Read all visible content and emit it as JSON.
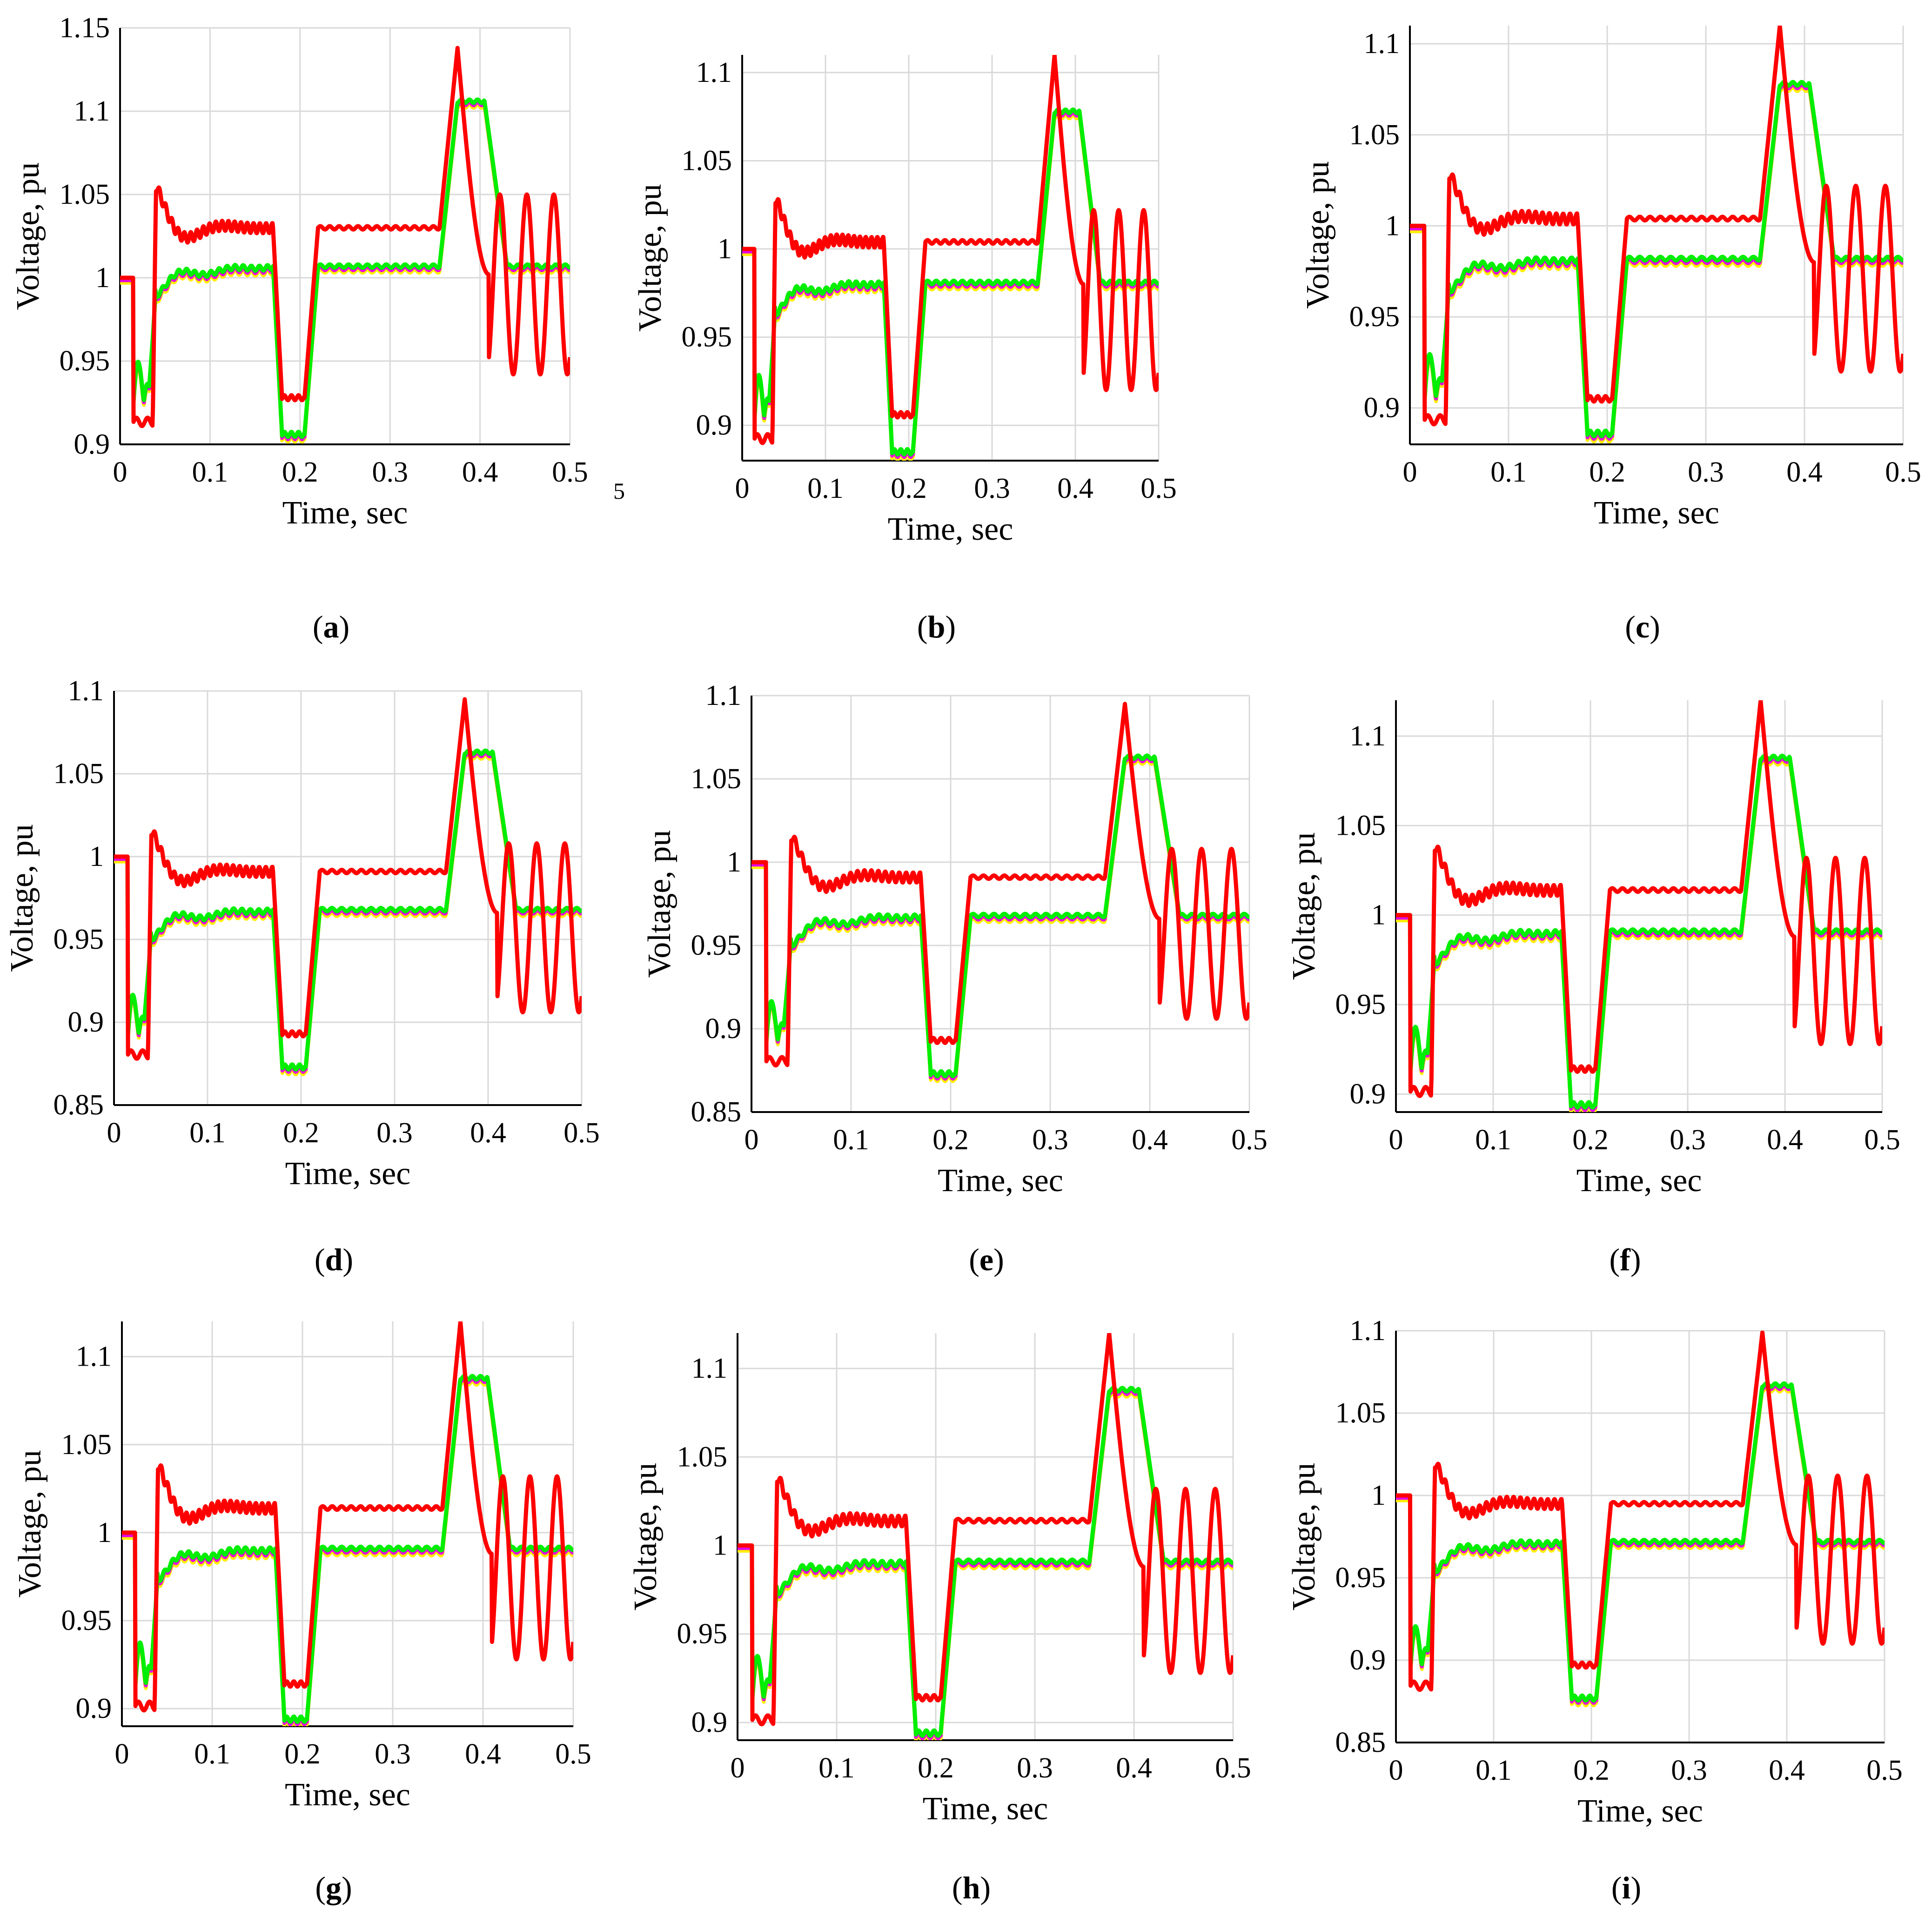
{
  "figure": {
    "stray_mark": "5",
    "series_colors": {
      "red": "#ff0000",
      "yellow": "#ffee00",
      "blue": "#1e1ee6",
      "magenta": "#e600e6",
      "green": "#00ee00"
    }
  },
  "chart_data": [
    {
      "id": "a",
      "type": "line",
      "caption_letter": "a",
      "xlabel": "Time, sec",
      "ylabel": "Voltage, pu",
      "xlim": [
        0,
        0.5
      ],
      "ylim": [
        0.9,
        1.15
      ],
      "xticks": [
        "0",
        "0.1",
        "0.2",
        "0.3",
        "0.4",
        "0.5"
      ],
      "yticks": [
        "0.9",
        "0.95",
        "1",
        "1.05",
        "1.1",
        "1.15"
      ],
      "ytick_values": [
        0.9,
        0.95,
        1.0,
        1.05,
        1.1,
        1.15
      ],
      "base": 1.007,
      "red_base": 1.03,
      "sag": 0.906,
      "red_sag": 0.928,
      "swell": 1.106,
      "red_swell": 1.138,
      "red_osc_min": 0.942,
      "red_osc_max": 1.05,
      "start": 1.0,
      "yellow_offset": 0.003
    },
    {
      "id": "b",
      "type": "line",
      "caption_letter": "b",
      "xlabel": "Time, sec",
      "ylabel": "Voltage, pu",
      "xlim": [
        0,
        0.5
      ],
      "ylim": [
        0.88,
        1.11
      ],
      "xticks": [
        "0",
        "0.1",
        "0.2",
        "0.3",
        "0.4",
        "0.5"
      ],
      "yticks": [
        "0.9",
        "0.95",
        "1",
        "1.05",
        "1.1"
      ],
      "ytick_values": [
        0.9,
        0.95,
        1.0,
        1.05,
        1.1
      ],
      "base": 0.981,
      "red_base": 1.004,
      "sag": 0.885,
      "red_sag": 0.906,
      "swell": 1.078,
      "red_swell": 1.11,
      "red_osc_min": 0.92,
      "red_osc_max": 1.022,
      "start": 1.0,
      "yellow_offset": 0.003
    },
    {
      "id": "c",
      "type": "line",
      "caption_letter": "c",
      "xlabel": "Time, sec",
      "ylabel": "Voltage, pu",
      "xlim": [
        0,
        0.5
      ],
      "ylim": [
        0.88,
        1.11
      ],
      "xticks": [
        "0",
        "0.1",
        "0.2",
        "0.3",
        "0.4",
        "0.5"
      ],
      "yticks": [
        "0.9",
        "0.95",
        "1",
        "1.05",
        "1.1"
      ],
      "ytick_values": [
        0.9,
        0.95,
        1.0,
        1.05,
        1.1
      ],
      "base": 0.982,
      "red_base": 1.004,
      "sag": 0.886,
      "red_sag": 0.905,
      "swell": 1.078,
      "red_swell": 1.11,
      "red_osc_min": 0.92,
      "red_osc_max": 1.022,
      "start": 1.0,
      "yellow_offset": 0.003
    },
    {
      "id": "d",
      "type": "line",
      "caption_letter": "d",
      "xlabel": "Time, sec",
      "ylabel": "Voltage, pu",
      "xlim": [
        0,
        0.5
      ],
      "ylim": [
        0.85,
        1.1
      ],
      "xticks": [
        "0",
        "0.1",
        "0.2",
        "0.3",
        "0.4",
        "0.5"
      ],
      "yticks": [
        "0.85",
        "0.9",
        "0.95",
        "1",
        "1.05",
        "1.1"
      ],
      "ytick_values": [
        0.85,
        0.9,
        0.95,
        1.0,
        1.05,
        1.1
      ],
      "base": 0.968,
      "red_base": 0.991,
      "sag": 0.873,
      "red_sag": 0.893,
      "swell": 1.063,
      "red_swell": 1.095,
      "red_osc_min": 0.906,
      "red_osc_max": 1.008,
      "start": 1.0,
      "yellow_offset": 0.003
    },
    {
      "id": "e",
      "type": "line",
      "caption_letter": "e",
      "xlabel": "Time, sec",
      "ylabel": "Voltage, pu",
      "xlim": [
        0,
        0.5
      ],
      "ylim": [
        0.85,
        1.1
      ],
      "xticks": [
        "0",
        "0.1",
        "0.2",
        "0.3",
        "0.4",
        "0.5"
      ],
      "yticks": [
        "0.85",
        "0.9",
        "0.95",
        "1",
        "1.05",
        "1.1"
      ],
      "ytick_values": [
        0.85,
        0.9,
        0.95,
        1.0,
        1.05,
        1.1
      ],
      "base": 0.968,
      "red_base": 0.991,
      "sag": 0.873,
      "red_sag": 0.893,
      "swell": 1.063,
      "red_swell": 1.095,
      "red_osc_min": 0.906,
      "red_osc_max": 1.008,
      "start": 1.0,
      "yellow_offset": 0.003
    },
    {
      "id": "f",
      "type": "line",
      "caption_letter": "f",
      "xlabel": "Time, sec",
      "ylabel": "Voltage, pu",
      "xlim": [
        0,
        0.5
      ],
      "ylim": [
        0.89,
        1.12
      ],
      "xticks": [
        "0",
        "0.1",
        "0.2",
        "0.3",
        "0.4",
        "0.5"
      ],
      "yticks": [
        "0.9",
        "0.95",
        "1",
        "1.05",
        "1.1"
      ],
      "ytick_values": [
        0.9,
        0.95,
        1.0,
        1.05,
        1.1
      ],
      "base": 0.991,
      "red_base": 1.014,
      "sag": 0.894,
      "red_sag": 0.914,
      "swell": 1.088,
      "red_swell": 1.12,
      "red_osc_min": 0.928,
      "red_osc_max": 1.032,
      "start": 1.0,
      "yellow_offset": 0.003
    },
    {
      "id": "g",
      "type": "line",
      "caption_letter": "g",
      "xlabel": "Time, sec",
      "ylabel": "Voltage, pu",
      "xlim": [
        0,
        0.5
      ],
      "ylim": [
        0.89,
        1.12
      ],
      "xticks": [
        "0",
        "0.1",
        "0.2",
        "0.3",
        "0.4",
        "0.5"
      ],
      "yticks": [
        "0.9",
        "0.95",
        "1",
        "1.05",
        "1.1"
      ],
      "ytick_values": [
        0.9,
        0.95,
        1.0,
        1.05,
        1.1
      ],
      "base": 0.991,
      "red_base": 1.014,
      "sag": 0.894,
      "red_sag": 0.914,
      "swell": 1.088,
      "red_swell": 1.12,
      "red_osc_min": 0.928,
      "red_osc_max": 1.032,
      "start": 1.0,
      "yellow_offset": 0.003
    },
    {
      "id": "h",
      "type": "line",
      "caption_letter": "h",
      "xlabel": "Time, sec",
      "ylabel": "Voltage, pu",
      "xlim": [
        0,
        0.5
      ],
      "ylim": [
        0.89,
        1.12
      ],
      "xticks": [
        "0",
        "0.1",
        "0.2",
        "0.3",
        "0.4",
        "0.5"
      ],
      "yticks": [
        "0.9",
        "0.95",
        "1",
        "1.05",
        "1.1"
      ],
      "ytick_values": [
        0.9,
        0.95,
        1.0,
        1.05,
        1.1
      ],
      "base": 0.991,
      "red_base": 1.014,
      "sag": 0.894,
      "red_sag": 0.914,
      "swell": 1.088,
      "red_swell": 1.12,
      "red_osc_min": 0.928,
      "red_osc_max": 1.032,
      "start": 1.0,
      "yellow_offset": 0.003
    },
    {
      "id": "i",
      "type": "line",
      "caption_letter": "i",
      "xlabel": "Time, sec",
      "ylabel": "Voltage, pu",
      "xlim": [
        0,
        0.5
      ],
      "ylim": [
        0.85,
        1.1
      ],
      "xticks": [
        "0",
        "0.1",
        "0.2",
        "0.3",
        "0.4",
        "0.5"
      ],
      "yticks": [
        "0.85",
        "0.9",
        "0.95",
        "1",
        "1.05",
        "1.1"
      ],
      "ytick_values": [
        0.85,
        0.9,
        0.95,
        1.0,
        1.05,
        1.1
      ],
      "base": 0.972,
      "red_base": 0.995,
      "sag": 0.877,
      "red_sag": 0.897,
      "swell": 1.067,
      "red_swell": 1.099,
      "red_osc_min": 0.91,
      "red_osc_max": 1.012,
      "start": 1.0,
      "yellow_offset": 0.003
    }
  ]
}
